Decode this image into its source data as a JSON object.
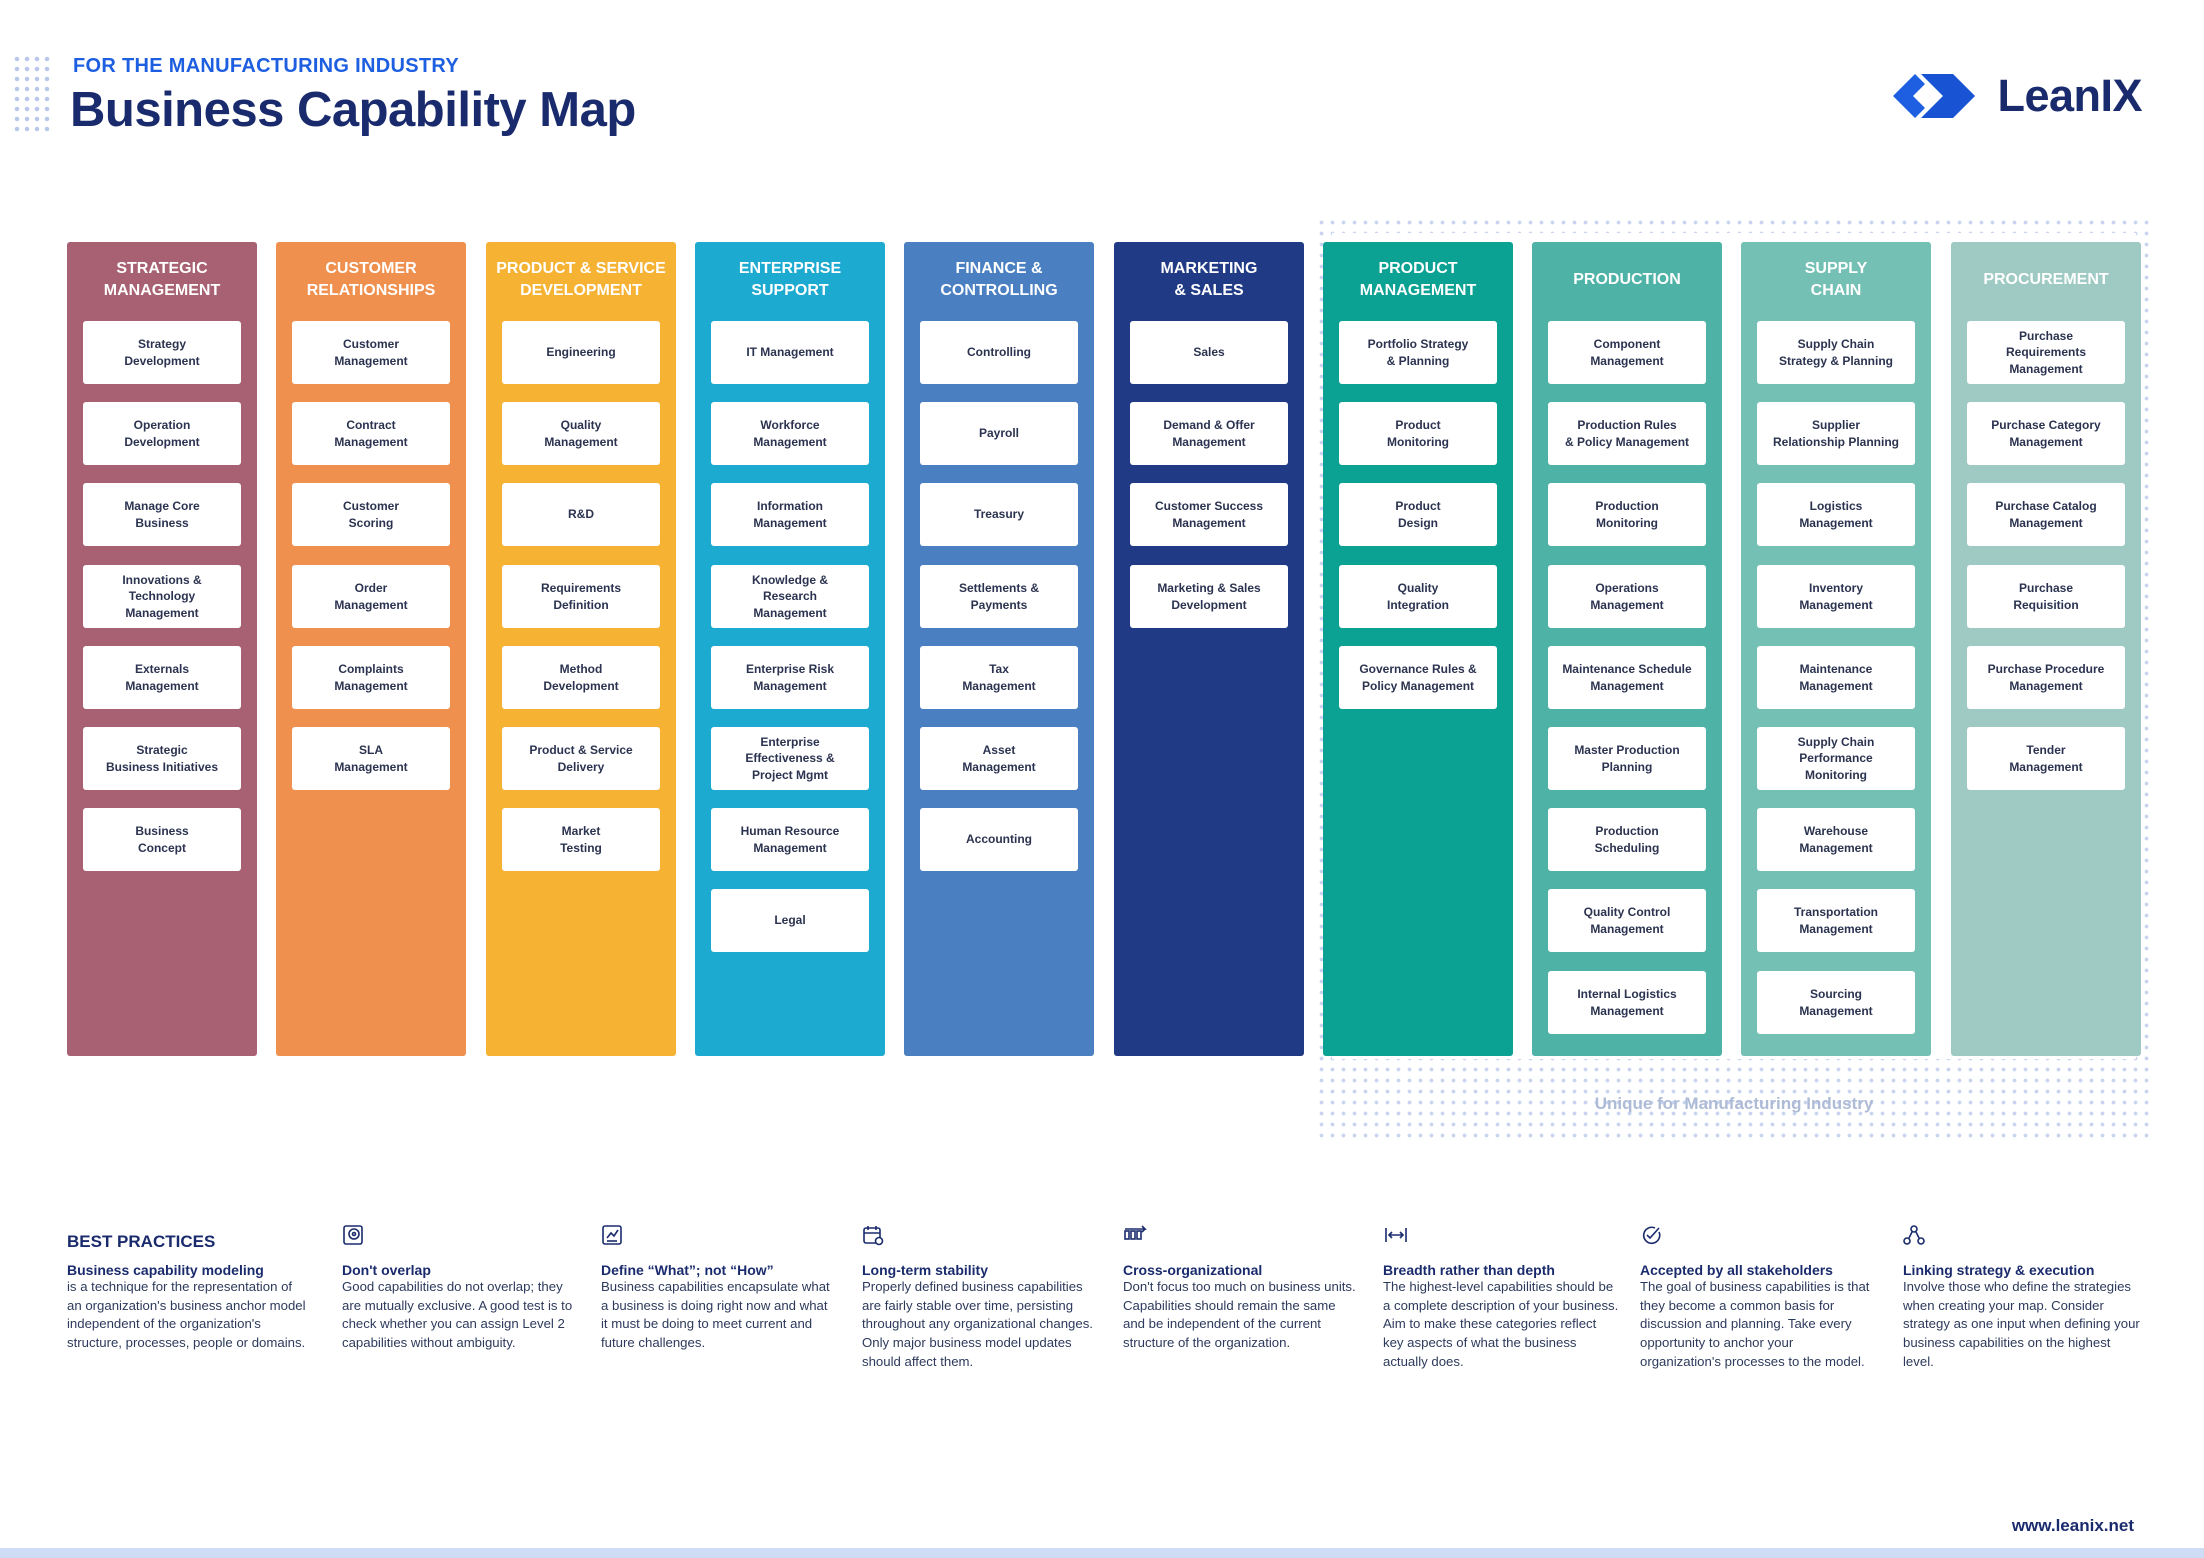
{
  "header": {
    "supertitle": "FOR THE MANUFACTURING INDUSTRY",
    "title": "Business Capability Map",
    "logo_text": "LeanIX"
  },
  "unique_label": "Unique for Manufacturing Industry",
  "columns": [
    {
      "name": "STRATEGIC\nMANAGEMENT",
      "color": "#a86173",
      "items": [
        "Strategy\nDevelopment",
        "Operation\nDevelopment",
        "Manage Core\nBusiness",
        "Innovations &\nTechnology\nManagement",
        "Externals\nManagement",
        "Strategic\nBusiness Initiatives",
        "Business\nConcept"
      ]
    },
    {
      "name": "CUSTOMER\nRELATIONSHIPS",
      "color": "#f0904e",
      "items": [
        "Customer\nManagement",
        "Contract\nManagement",
        "Customer\nScoring",
        "Order\nManagement",
        "Complaints\nManagement",
        "SLA\nManagement"
      ]
    },
    {
      "name": "PRODUCT & SERVICE\nDEVELOPMENT",
      "color": "#f6b233",
      "items": [
        "Engineering",
        "Quality\nManagement",
        "R&D",
        "Requirements\nDefinition",
        "Method\nDevelopment",
        "Product & Service\nDelivery",
        "Market\nTesting"
      ]
    },
    {
      "name": "ENTERPRISE\nSUPPORT",
      "color": "#1caad1",
      "items": [
        "IT Management",
        "Workforce\nManagement",
        "Information\nManagement",
        "Knowledge &\nResearch\nManagement",
        "Enterprise Risk\nManagement",
        "Enterprise\nEffectiveness &\nProject Mgmt",
        "Human Resource\nManagement",
        "Legal"
      ]
    },
    {
      "name": "FINANCE &\nCONTROLLING",
      "color": "#4a80c2",
      "items": [
        "Controlling",
        "Payroll",
        "Treasury",
        "Settlements &\nPayments",
        "Tax\nManagement",
        "Asset\nManagement",
        "Accounting"
      ]
    },
    {
      "name": "MARKETING\n& SALES",
      "color": "#213a85",
      "items": [
        "Sales",
        "Demand & Offer\nManagement",
        "Customer Success\nManagement",
        "Marketing & Sales\nDevelopment"
      ]
    },
    {
      "name": "PRODUCT\nMANAGEMENT",
      "color": "#0ba193",
      "items": [
        "Portfolio Strategy\n& Planning",
        "Product\nMonitoring",
        "Product\nDesign",
        "Quality\nIntegration",
        "Governance Rules &\nPolicy Management"
      ]
    },
    {
      "name": "PRODUCTION",
      "color": "#4eb2a6",
      "items": [
        "Component\nManagement",
        "Production Rules\n& Policy Management",
        "Production\nMonitoring",
        "Operations\nManagement",
        "Maintenance Schedule\nManagement",
        "Master Production\nPlanning",
        "Production\nScheduling",
        "Quality Control\nManagement",
        "Internal Logistics\nManagement"
      ]
    },
    {
      "name": "SUPPLY\nCHAIN",
      "color": "#74c0b5",
      "items": [
        "Supply Chain\nStrategy & Planning",
        "Supplier\nRelationship Planning",
        "Logistics\nManagement",
        "Inventory\nManagement",
        "Maintenance\nManagement",
        "Supply Chain\nPerformance\nMonitoring",
        "Warehouse\nManagement",
        "Transportation\nManagement",
        "Sourcing\nManagement"
      ]
    },
    {
      "name": "PROCUREMENT",
      "color": "#9ecac3",
      "items": [
        "Purchase\nRequirements\nManagement",
        "Purchase Category\nManagement",
        "Purchase Catalog\nManagement",
        "Purchase\nRequisition",
        "Purchase Procedure\nManagement",
        "Tender\nManagement"
      ]
    }
  ],
  "best_practices": {
    "title": "BEST PRACTICES",
    "intro": {
      "head": "Business capability modeling",
      "text": "is a technique for the representation of an organization's business anchor model independent of the organization's structure, processes, people or domains."
    },
    "items": [
      {
        "icon": "target-icon",
        "head": "Don't overlap",
        "text": "Good capabilities do not overlap; they are mutually exclusive. A good test is to check whether you can assign Level 2 capabilities without ambiguity."
      },
      {
        "icon": "chart-box-icon",
        "head": "Define “What”; not “How”",
        "text": "Business capabilities encapsulate what a business is doing right now and what it must be doing to meet current and future challenges."
      },
      {
        "icon": "calendar-icon",
        "head": "Long-term stability",
        "text": "Properly defined business capabilities are fairly stable over time, persisting throughout any organizational changes. Only major business model updates should affect them."
      },
      {
        "icon": "cross-arrow-icon",
        "head": "Cross-organizational",
        "text": "Don't focus too much on business units. Capabilities should remain the same and be independent of the current structure of the organization."
      },
      {
        "icon": "width-arrows-icon",
        "head": "Breadth rather than depth",
        "text": "The highest-level capabilities should be a complete description of your business. Aim to make these categories reflect key aspects of what the business actually does."
      },
      {
        "icon": "check-circle-icon",
        "head": "Accepted by all stakeholders",
        "text": "The goal of business capabilities is that they become a common basis for discussion and planning. Take every opportunity to anchor your organization's processes to the model."
      },
      {
        "icon": "network-icon",
        "head": "Linking strategy & execution",
        "text": "Involve those who define the strategies when creating your map. Consider strategy as one input when defining your business capabilities on the highest level."
      }
    ]
  },
  "footer": {
    "site": "www.leanix.net"
  }
}
